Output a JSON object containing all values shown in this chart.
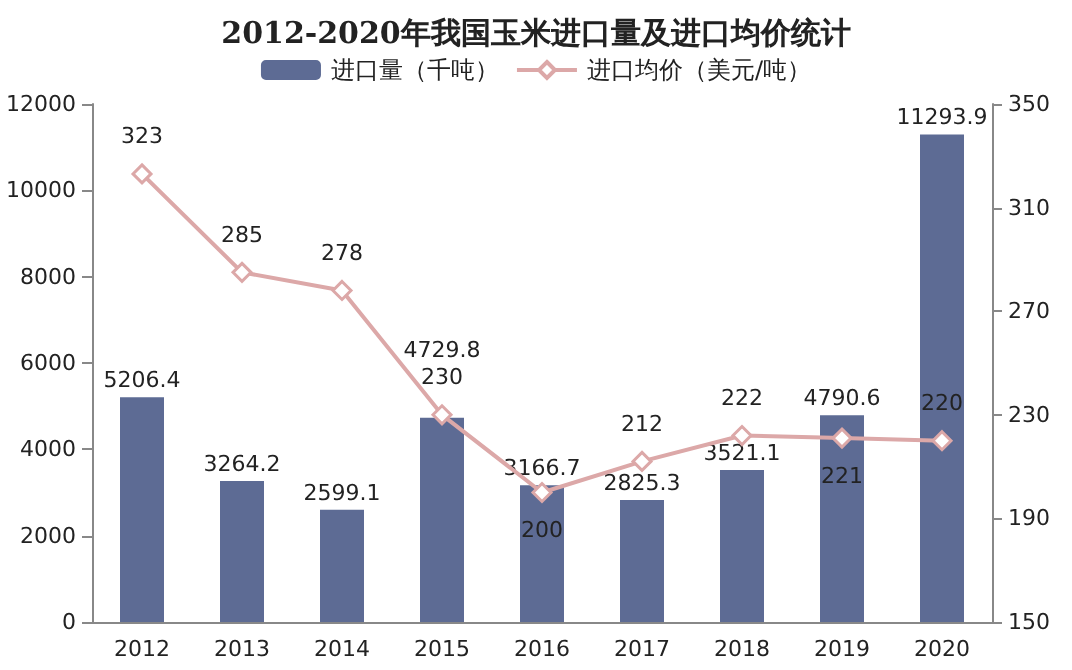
{
  "chart_data": {
    "type": "bar",
    "title": "2012-2020年我国玉米进口量及进口均价统计",
    "categories": [
      "2012",
      "2013",
      "2014",
      "2015",
      "2016",
      "2017",
      "2018",
      "2019",
      "2020"
    ],
    "series": [
      {
        "name": "进口量（千吨）",
        "color": "#5d6b94",
        "values": [
          5206.4,
          3264.2,
          2599.1,
          4729.8,
          3166.7,
          2825.3,
          3521.1,
          4790.6,
          11293.9
        ]
      },
      {
        "name": "进口均价（美元/吨）",
        "type": "line",
        "axis": "y2",
        "color": "#dca8a8",
        "values": [
          323,
          285,
          278,
          230,
          200,
          212,
          222,
          221,
          220
        ]
      }
    ],
    "ylim": [
      0,
      12000
    ],
    "yticks": [
      0,
      2000,
      4000,
      6000,
      8000,
      10000,
      12000
    ],
    "y2lim": [
      150,
      350
    ],
    "y2ticks": [
      150,
      190,
      230,
      270,
      310,
      350
    ],
    "data_labels": true,
    "legend": "top",
    "marker": "diamond",
    "grid": false
  }
}
